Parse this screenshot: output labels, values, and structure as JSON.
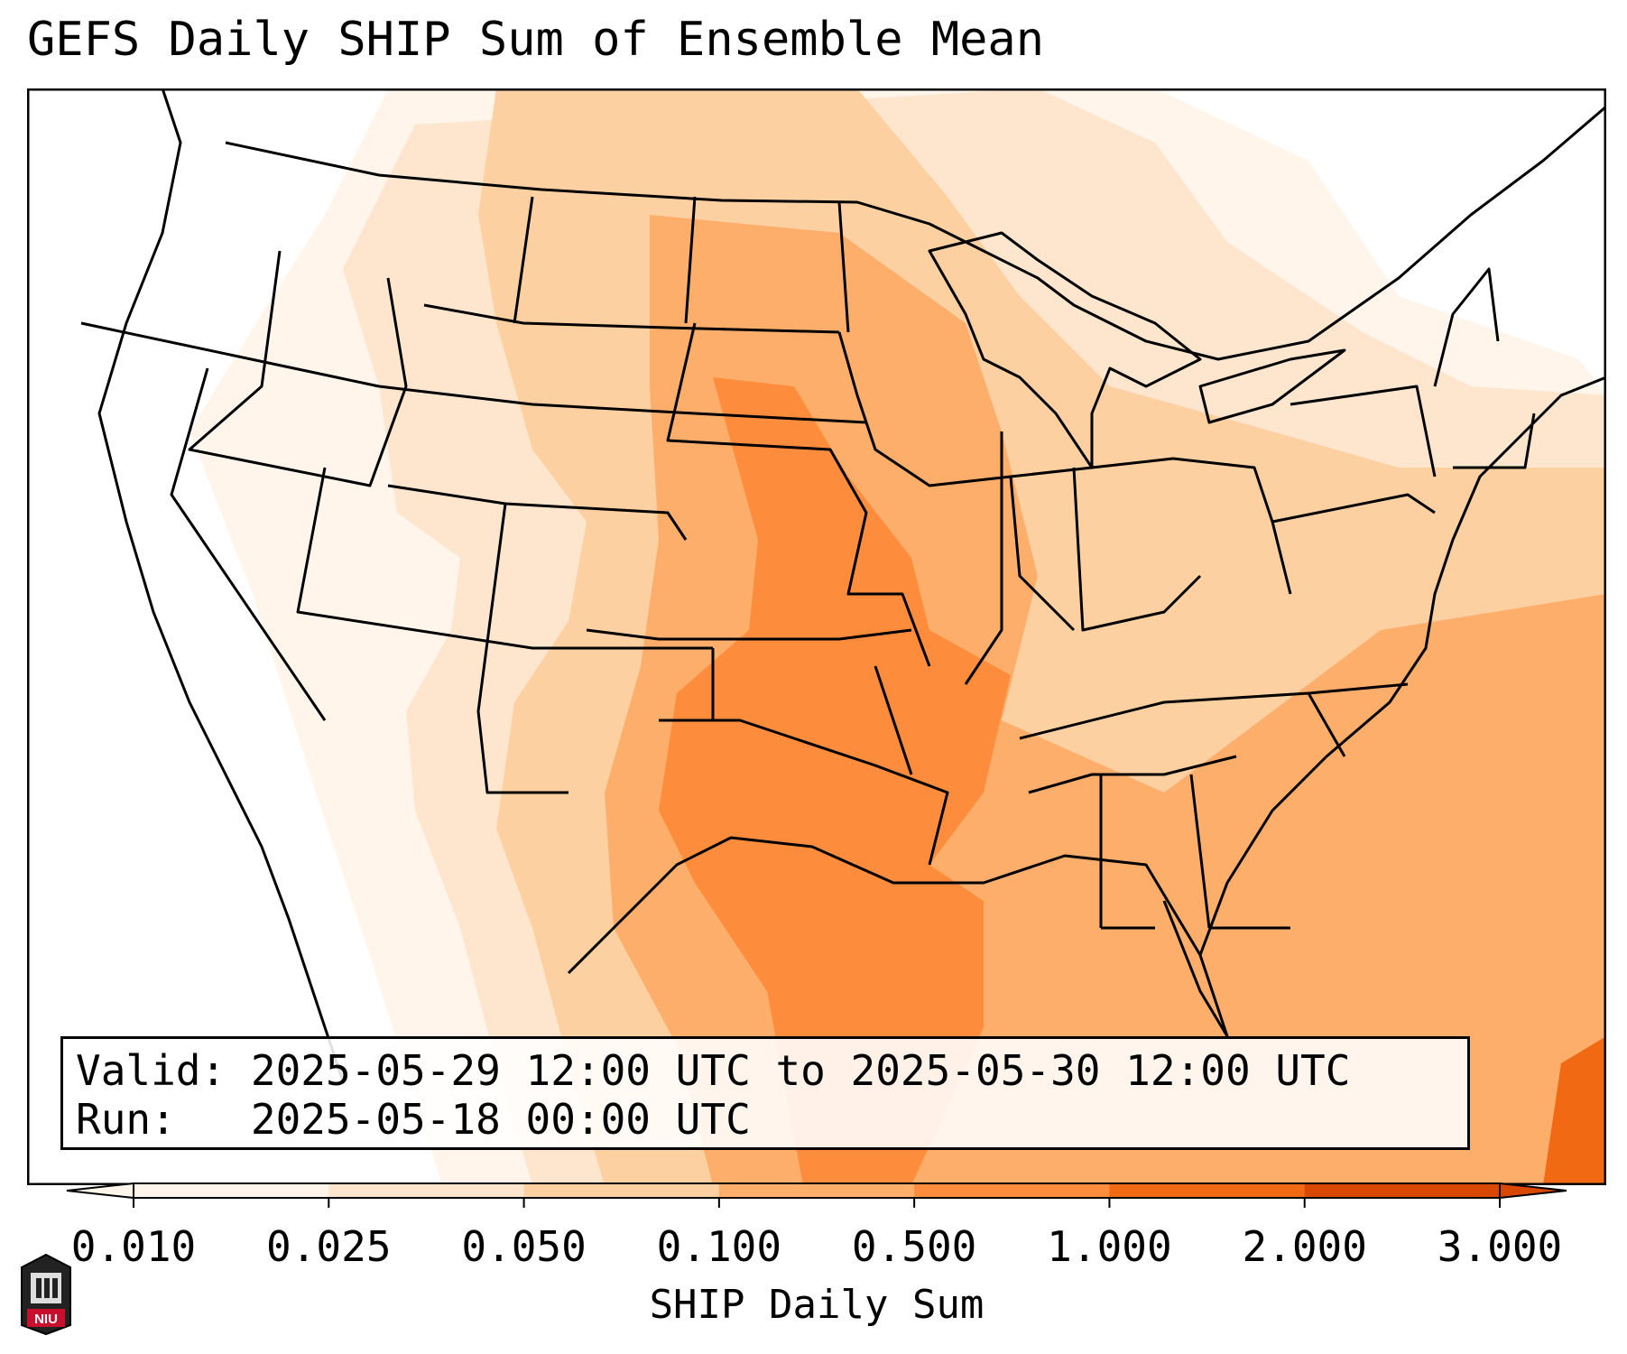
{
  "title": "GEFS Daily SHIP Sum of Ensemble Mean",
  "info": {
    "valid_label": "Valid:",
    "valid_value": "2025-05-29 12:00 UTC to 2025-05-30 12:00 UTC",
    "run_label": "Run:",
    "run_value": "2025-05-18 00:00 UTC"
  },
  "colorbar": {
    "label": "SHIP Daily Sum",
    "ticks": [
      "0.010",
      "0.025",
      "0.050",
      "0.100",
      "0.500",
      "1.000",
      "2.000",
      "3.000"
    ],
    "colors": [
      "#fff5eb",
      "#fee6ce",
      "#fdd0a2",
      "#fdae6b",
      "#fd8d3c",
      "#f16913",
      "#d94801"
    ],
    "extend": "both"
  },
  "logo": {
    "text": "NIU",
    "color": "#c8102e"
  },
  "colors": {
    "land_outline": "#000000",
    "background": "#ffffff"
  }
}
